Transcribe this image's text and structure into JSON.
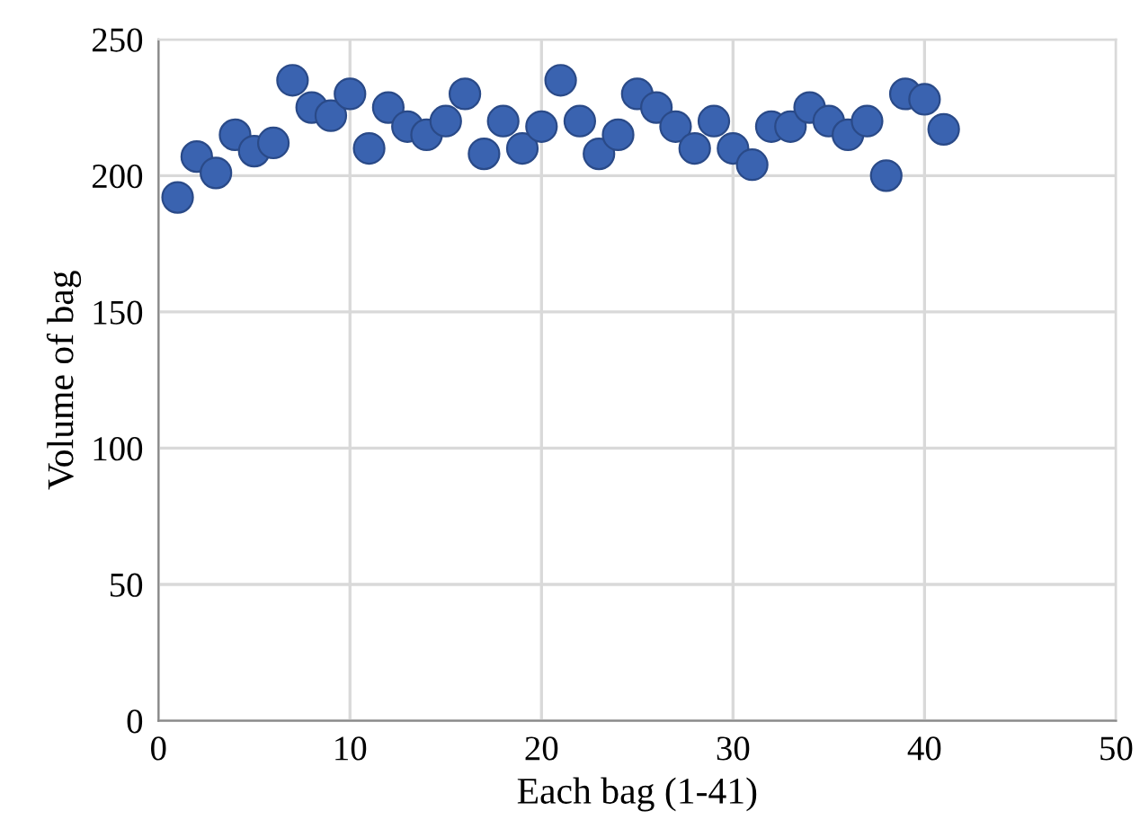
{
  "chart_data": {
    "type": "scatter",
    "xlabel": "Each bag (1-41)",
    "ylabel": "Volume of bag",
    "x": [
      1,
      2,
      3,
      4,
      5,
      6,
      7,
      8,
      9,
      10,
      11,
      12,
      13,
      14,
      15,
      16,
      17,
      18,
      19,
      20,
      21,
      22,
      23,
      24,
      25,
      26,
      27,
      28,
      29,
      30,
      31,
      32,
      33,
      34,
      35,
      36,
      37,
      38,
      39,
      40,
      41
    ],
    "series": [
      {
        "color": "#3a63b0",
        "values": [
          192,
          207,
          201,
          215,
          209,
          212,
          235,
          225,
          222,
          230,
          210,
          225,
          218,
          215,
          220,
          230,
          208,
          220,
          210,
          218,
          235,
          220,
          208,
          215,
          230,
          225,
          218,
          210,
          220,
          210,
          204,
          218,
          218,
          225,
          220,
          215,
          220,
          200,
          230,
          228,
          217
        ]
      }
    ],
    "xlim": [
      0,
      50
    ],
    "xticks": [
      0,
      10,
      20,
      30,
      40,
      50
    ],
    "ylim": [
      0,
      250
    ],
    "yticks": [
      0,
      50,
      100,
      150,
      200,
      250
    ],
    "grid": true,
    "marker": "circle"
  }
}
